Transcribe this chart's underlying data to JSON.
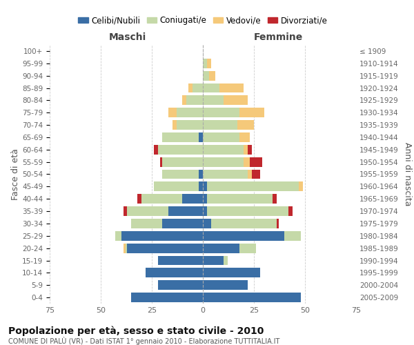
{
  "age_groups": [
    "0-4",
    "5-9",
    "10-14",
    "15-19",
    "20-24",
    "25-29",
    "30-34",
    "35-39",
    "40-44",
    "45-49",
    "50-54",
    "55-59",
    "60-64",
    "65-69",
    "70-74",
    "75-79",
    "80-84",
    "85-89",
    "90-94",
    "95-99",
    "100+"
  ],
  "birth_years": [
    "2005-2009",
    "2000-2004",
    "1995-1999",
    "1990-1994",
    "1985-1989",
    "1980-1984",
    "1975-1979",
    "1970-1974",
    "1965-1969",
    "1960-1964",
    "1955-1959",
    "1950-1954",
    "1945-1949",
    "1940-1944",
    "1935-1939",
    "1930-1934",
    "1925-1929",
    "1920-1924",
    "1915-1919",
    "1910-1914",
    "≤ 1909"
  ],
  "males": {
    "celibi": [
      35,
      22,
      28,
      22,
      37,
      40,
      20,
      17,
      10,
      2,
      2,
      0,
      0,
      2,
      0,
      0,
      0,
      0,
      0,
      0,
      0
    ],
    "coniugati": [
      0,
      0,
      0,
      0,
      1,
      3,
      15,
      20,
      20,
      22,
      18,
      20,
      22,
      18,
      13,
      13,
      8,
      5,
      0,
      0,
      0
    ],
    "vedovi": [
      0,
      0,
      0,
      0,
      1,
      0,
      0,
      0,
      0,
      0,
      0,
      0,
      0,
      0,
      2,
      4,
      2,
      2,
      0,
      0,
      0
    ],
    "divorziati": [
      0,
      0,
      0,
      0,
      0,
      0,
      0,
      2,
      2,
      0,
      0,
      1,
      2,
      0,
      0,
      0,
      0,
      0,
      0,
      0,
      0
    ]
  },
  "females": {
    "nubili": [
      48,
      22,
      28,
      10,
      18,
      40,
      4,
      2,
      2,
      2,
      0,
      0,
      0,
      0,
      0,
      0,
      0,
      0,
      0,
      0,
      0
    ],
    "coniugate": [
      0,
      0,
      0,
      2,
      8,
      8,
      32,
      40,
      32,
      45,
      22,
      20,
      20,
      18,
      17,
      18,
      10,
      8,
      3,
      2,
      0
    ],
    "vedove": [
      0,
      0,
      0,
      0,
      0,
      0,
      0,
      0,
      0,
      2,
      2,
      3,
      2,
      5,
      8,
      12,
      12,
      12,
      3,
      2,
      0
    ],
    "divorziate": [
      0,
      0,
      0,
      0,
      0,
      0,
      1,
      2,
      2,
      0,
      4,
      6,
      2,
      0,
      0,
      0,
      0,
      0,
      0,
      0,
      0
    ]
  },
  "colors": {
    "celibi": "#3A6EA5",
    "coniugati": "#C5D9A8",
    "vedovi": "#F5C97A",
    "divorziati": "#C0272D"
  },
  "xlim": 75,
  "title": "Popolazione per età, sesso e stato civile - 2010",
  "subtitle": "COMUNE DI PALÙ (VR) - Dati ISTAT 1° gennaio 2010 - Elaborazione TUTTITALIA.IT",
  "ylabel_left": "Fasce di età",
  "ylabel_right": "Anni di nascita",
  "label_maschi": "Maschi",
  "label_femmine": "Femmine",
  "legend_labels": [
    "Celibi/Nubili",
    "Coniugati/e",
    "Vedovi/e",
    "Divorziati/e"
  ],
  "bg_color": "#FFFFFF",
  "grid_color": "#CCCCCC"
}
